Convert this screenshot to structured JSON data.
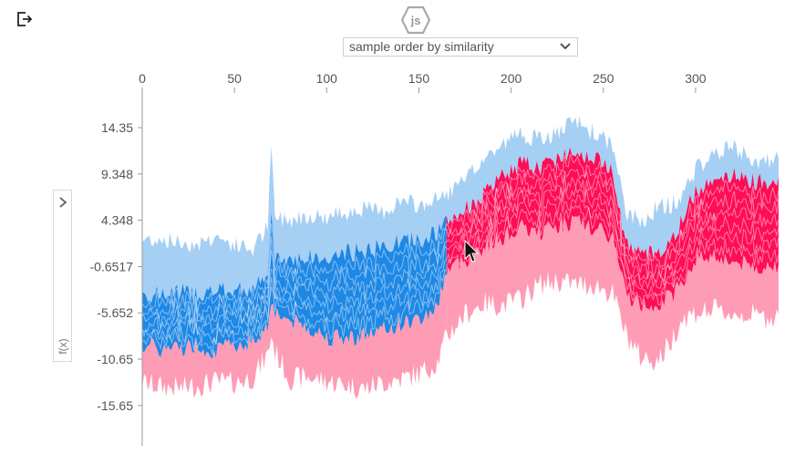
{
  "toolbar": {
    "exit_icon": "exit-icon",
    "logo_icon": "js-hexagon-icon",
    "logo_text": "js",
    "order_select": {
      "selected": "sample order by similarity",
      "icon": "chevron-down-icon"
    }
  },
  "side_panel": {
    "toggle_icon": "chevron-right-icon",
    "label": "f(x)"
  },
  "colors": {
    "pos_dark": "#ff0d57",
    "pos_light": "#ff9cb5",
    "neg_dark": "#1e88e5",
    "neg_light": "#a6cff4",
    "axis": "#999999",
    "text": "#555555"
  },
  "chart_data": {
    "type": "area",
    "x_ticks": [
      0,
      50,
      100,
      150,
      200,
      250,
      300
    ],
    "y_ticks": [
      "14.35",
      "9.348",
      "4.348",
      "-0.6517",
      "-5.652",
      "-10.65",
      "-15.65"
    ],
    "x_range": [
      0,
      345
    ],
    "y_range": [
      -20,
      17
    ],
    "ylabel": "f(x)",
    "series": [
      {
        "points": [
          [
            0,
            2.2,
            -3.5,
            -9.0,
            -13.2
          ],
          [
            10,
            2.4,
            -3.8,
            -9.6,
            -13.6
          ],
          [
            20,
            1.9,
            -3.3,
            -9.4,
            -13.8
          ],
          [
            30,
            1.8,
            -3.6,
            -9.2,
            -13.5
          ],
          [
            40,
            2.6,
            -3.4,
            -9.8,
            -13.1
          ],
          [
            50,
            1.6,
            -3.2,
            -9.0,
            -13.2
          ],
          [
            60,
            1.2,
            -3.0,
            -8.8,
            -12.6
          ],
          [
            68,
            3.6,
            -1.8,
            -7.0,
            -10.2
          ],
          [
            70,
            12.3,
            5.0,
            -4.0,
            -8.0
          ],
          [
            72,
            4.6,
            0.0,
            -5.5,
            -9.8
          ],
          [
            80,
            4.4,
            0.2,
            -6.5,
            -12.8
          ],
          [
            90,
            5.0,
            0.4,
            -7.2,
            -12.6
          ],
          [
            100,
            4.6,
            0.0,
            -8.2,
            -13.0
          ],
          [
            110,
            5.3,
            0.8,
            -8.4,
            -13.4
          ],
          [
            120,
            5.6,
            1.0,
            -8.0,
            -13.8
          ],
          [
            130,
            5.2,
            1.4,
            -7.6,
            -13.2
          ],
          [
            140,
            6.4,
            2.0,
            -6.8,
            -12.8
          ],
          [
            150,
            5.9,
            2.2,
            -6.4,
            -12.2
          ],
          [
            160,
            6.6,
            3.0,
            -5.0,
            -11.0
          ],
          [
            165,
            7.2,
            4.0,
            -1.0,
            -8.2
          ],
          [
            175,
            8.5,
            5.5,
            0.0,
            -5.8
          ],
          [
            185,
            11.0,
            7.0,
            1.5,
            -4.6
          ],
          [
            195,
            12.4,
            9.0,
            2.5,
            -4.8
          ],
          [
            205,
            13.8,
            10.5,
            3.5,
            -4.2
          ],
          [
            215,
            13.0,
            10.0,
            3.0,
            -2.6
          ],
          [
            225,
            13.7,
            11.0,
            3.8,
            -2.2
          ],
          [
            235,
            15.0,
            12.0,
            4.2,
            -2.6
          ],
          [
            245,
            13.8,
            11.0,
            3.4,
            -2.6
          ],
          [
            255,
            12.4,
            10.0,
            2.5,
            -3.6
          ],
          [
            262,
            5.2,
            2.0,
            -3.5,
            -7.8
          ],
          [
            270,
            4.2,
            0.5,
            -4.8,
            -10.4
          ],
          [
            280,
            5.8,
            1.0,
            -4.6,
            -10.8
          ],
          [
            287,
            6.0,
            2.0,
            -3.8,
            -8.6
          ],
          [
            292,
            6.8,
            4.0,
            -2.6,
            -6.4
          ],
          [
            300,
            9.8,
            7.5,
            0.2,
            -5.6
          ],
          [
            310,
            11.5,
            9.0,
            0.6,
            -5.4
          ],
          [
            320,
            12.2,
            9.2,
            -0.2,
            -5.8
          ],
          [
            330,
            11.0,
            8.6,
            -0.6,
            -5.8
          ],
          [
            338,
            10.5,
            8.5,
            -0.8,
            -6.2
          ],
          [
            345,
            11.0,
            9.0,
            -0.5,
            -5.8
          ]
        ]
      }
    ]
  }
}
